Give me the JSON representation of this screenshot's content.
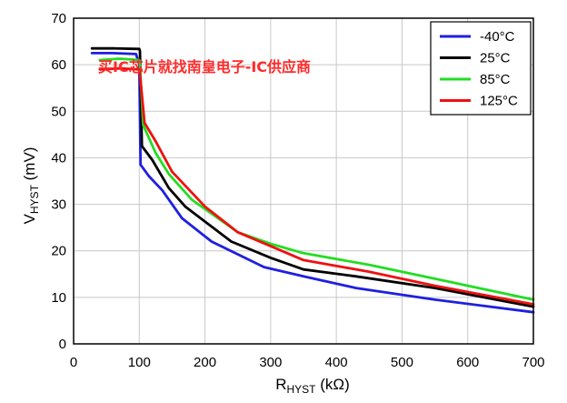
{
  "chart_data": {
    "type": "line",
    "xlabel": {
      "main": "R",
      "sub": "HYST",
      "unit": " (kΩ)"
    },
    "ylabel": {
      "main": "V",
      "sub": "HYST",
      "unit": " (mV)"
    },
    "xlim": [
      0,
      700
    ],
    "ylim": [
      0,
      70
    ],
    "xticks": [
      0,
      100,
      200,
      300,
      400,
      500,
      600,
      700
    ],
    "yticks": [
      0,
      10,
      20,
      30,
      40,
      50,
      60,
      70
    ],
    "grid": true,
    "legend_position": "top-right",
    "series": [
      {
        "name": "-40°C",
        "color": "#1f1fe0",
        "x": [
          28,
          60,
          95,
          100,
          102,
          115,
          135,
          165,
          210,
          290,
          350,
          430,
          550,
          700
        ],
        "y": [
          62.5,
          62.5,
          62.3,
          60,
          38.5,
          36,
          33,
          27,
          22,
          16.5,
          14.5,
          12,
          9.5,
          6.8
        ]
      },
      {
        "name": "25°C",
        "color": "#000000",
        "x": [
          28,
          60,
          100,
          101,
          104,
          120,
          145,
          170,
          240,
          300,
          350,
          430,
          550,
          700
        ],
        "y": [
          63.5,
          63.5,
          63.4,
          63,
          42.5,
          39.5,
          33.5,
          29.5,
          22,
          18.5,
          16,
          14.5,
          12,
          8
        ]
      },
      {
        "name": "85°C",
        "color": "#22dd22",
        "x": [
          40,
          70,
          100,
          101,
          106,
          125,
          145,
          180,
          250,
          300,
          350,
          450,
          550,
          700
        ],
        "y": [
          61,
          61.3,
          61,
          60,
          47,
          41,
          36.5,
          31,
          24,
          21.5,
          19.5,
          17,
          14,
          9.5
        ]
      },
      {
        "name": "125°C",
        "color": "#ee1111",
        "x": [
          40,
          70,
          100,
          101,
          108,
          125,
          150,
          200,
          250,
          300,
          350,
          450,
          550,
          700
        ],
        "y": [
          59,
          59.2,
          59,
          58,
          47.5,
          43.5,
          37,
          29.5,
          24,
          21,
          18,
          15.5,
          12.5,
          8.5
        ]
      }
    ]
  },
  "watermark": "买IC芯片就找南皇电子-IC供应商"
}
